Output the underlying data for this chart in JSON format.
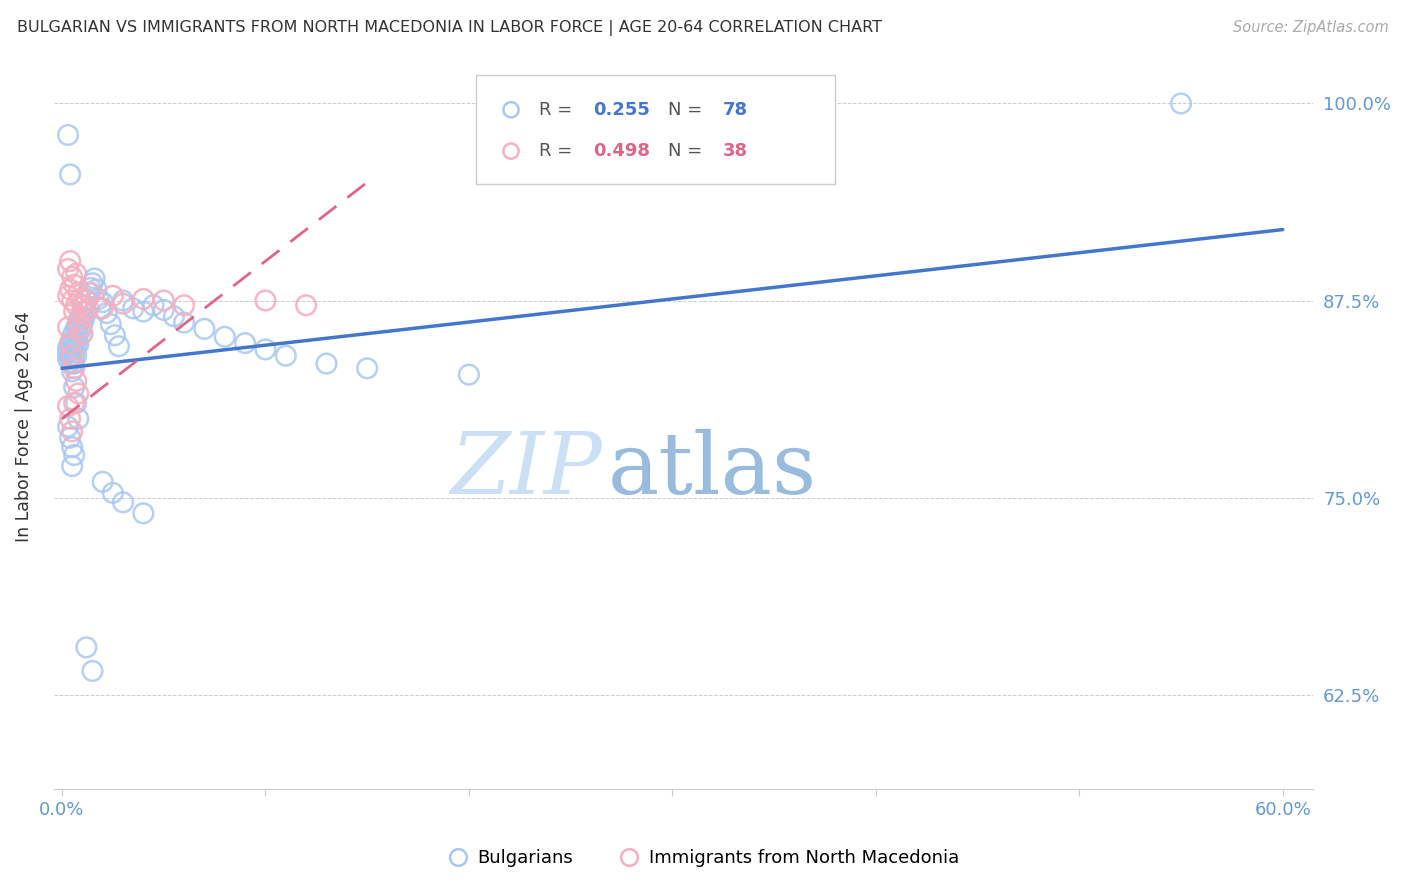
{
  "title": "BULGARIAN VS IMMIGRANTS FROM NORTH MACEDONIA IN LABOR FORCE | AGE 20-64 CORRELATION CHART",
  "source": "Source: ZipAtlas.com",
  "ylabel": "In Labor Force | Age 20-64",
  "xlim_min": -0.004,
  "xlim_max": 0.615,
  "ylim_min": 0.565,
  "ylim_max": 1.025,
  "blue_color": "#a8c8f0",
  "pink_color": "#f4b0c0",
  "trendline_blue": "#4477cc",
  "trendline_pink": "#dd6688",
  "axis_tick_color": "#6699cc",
  "grid_color": "#cccccc",
  "title_color": "#333333",
  "source_color": "#aaaaaa",
  "watermark_zip_color": "#c8dff5",
  "watermark_atlas_color": "#9bbde0",
  "ytick_values": [
    0.625,
    0.75,
    0.875,
    1.0
  ],
  "ytick_labels": [
    "62.5%",
    "75.0%",
    "87.5%",
    "100.0%"
  ],
  "xtick_values": [
    0.0,
    0.1,
    0.2,
    0.3,
    0.4,
    0.5,
    0.6
  ],
  "xtick_labels": [
    "0.0%",
    "",
    "",
    "",
    "",
    "",
    "60.0%"
  ],
  "label_blue": "Bulgarians",
  "label_pink": "Immigrants from North Macedonia",
  "blue_x": [
    0.003,
    0.003,
    0.003,
    0.004,
    0.004,
    0.004,
    0.004,
    0.005,
    0.005,
    0.005,
    0.005,
    0.005,
    0.006,
    0.006,
    0.006,
    0.006,
    0.006,
    0.007,
    0.007,
    0.007,
    0.007,
    0.008,
    0.008,
    0.008,
    0.009,
    0.009,
    0.01,
    0.01,
    0.01,
    0.011,
    0.011,
    0.012,
    0.012,
    0.013,
    0.014,
    0.015,
    0.016,
    0.017,
    0.018,
    0.019,
    0.02,
    0.022,
    0.024,
    0.026,
    0.028,
    0.03,
    0.035,
    0.04,
    0.045,
    0.05,
    0.055,
    0.06,
    0.07,
    0.08,
    0.09,
    0.1,
    0.11,
    0.13,
    0.15,
    0.2,
    0.003,
    0.004,
    0.005,
    0.006,
    0.007,
    0.008,
    0.003,
    0.004,
    0.005,
    0.006,
    0.55,
    0.005,
    0.02,
    0.025,
    0.03,
    0.04,
    0.012,
    0.015
  ],
  "blue_y": [
    0.845,
    0.842,
    0.838,
    0.848,
    0.843,
    0.84,
    0.836,
    0.852,
    0.847,
    0.844,
    0.838,
    0.835,
    0.855,
    0.85,
    0.845,
    0.84,
    0.835,
    0.858,
    0.852,
    0.847,
    0.84,
    0.86,
    0.854,
    0.847,
    0.863,
    0.856,
    0.868,
    0.86,
    0.854,
    0.872,
    0.864,
    0.876,
    0.868,
    0.88,
    0.883,
    0.886,
    0.889,
    0.882,
    0.876,
    0.87,
    0.874,
    0.867,
    0.86,
    0.853,
    0.846,
    0.875,
    0.87,
    0.868,
    0.872,
    0.869,
    0.865,
    0.861,
    0.857,
    0.852,
    0.848,
    0.844,
    0.84,
    0.835,
    0.832,
    0.828,
    0.98,
    0.955,
    0.83,
    0.82,
    0.81,
    0.8,
    0.795,
    0.788,
    0.782,
    0.777,
    1.0,
    0.77,
    0.76,
    0.753,
    0.747,
    0.74,
    0.655,
    0.64
  ],
  "pink_x": [
    0.003,
    0.003,
    0.004,
    0.004,
    0.005,
    0.005,
    0.006,
    0.006,
    0.007,
    0.007,
    0.008,
    0.008,
    0.009,
    0.009,
    0.01,
    0.01,
    0.011,
    0.012,
    0.013,
    0.014,
    0.003,
    0.004,
    0.005,
    0.006,
    0.007,
    0.008,
    0.02,
    0.025,
    0.03,
    0.04,
    0.05,
    0.06,
    0.003,
    0.004,
    0.005,
    0.1,
    0.12,
    0.006
  ],
  "pink_y": [
    0.895,
    0.878,
    0.9,
    0.882,
    0.89,
    0.875,
    0.885,
    0.868,
    0.892,
    0.872,
    0.88,
    0.862,
    0.876,
    0.858,
    0.872,
    0.854,
    0.868,
    0.875,
    0.87,
    0.88,
    0.858,
    0.848,
    0.84,
    0.832,
    0.824,
    0.816,
    0.87,
    0.878,
    0.873,
    0.876,
    0.875,
    0.872,
    0.808,
    0.8,
    0.792,
    0.875,
    0.872,
    0.81
  ],
  "blue_trendline_x": [
    0.0,
    0.6
  ],
  "blue_trendline_y": [
    0.832,
    0.92
  ],
  "pink_trendline_x": [
    0.0,
    0.15
  ],
  "pink_trendline_y": [
    0.8,
    0.95
  ]
}
